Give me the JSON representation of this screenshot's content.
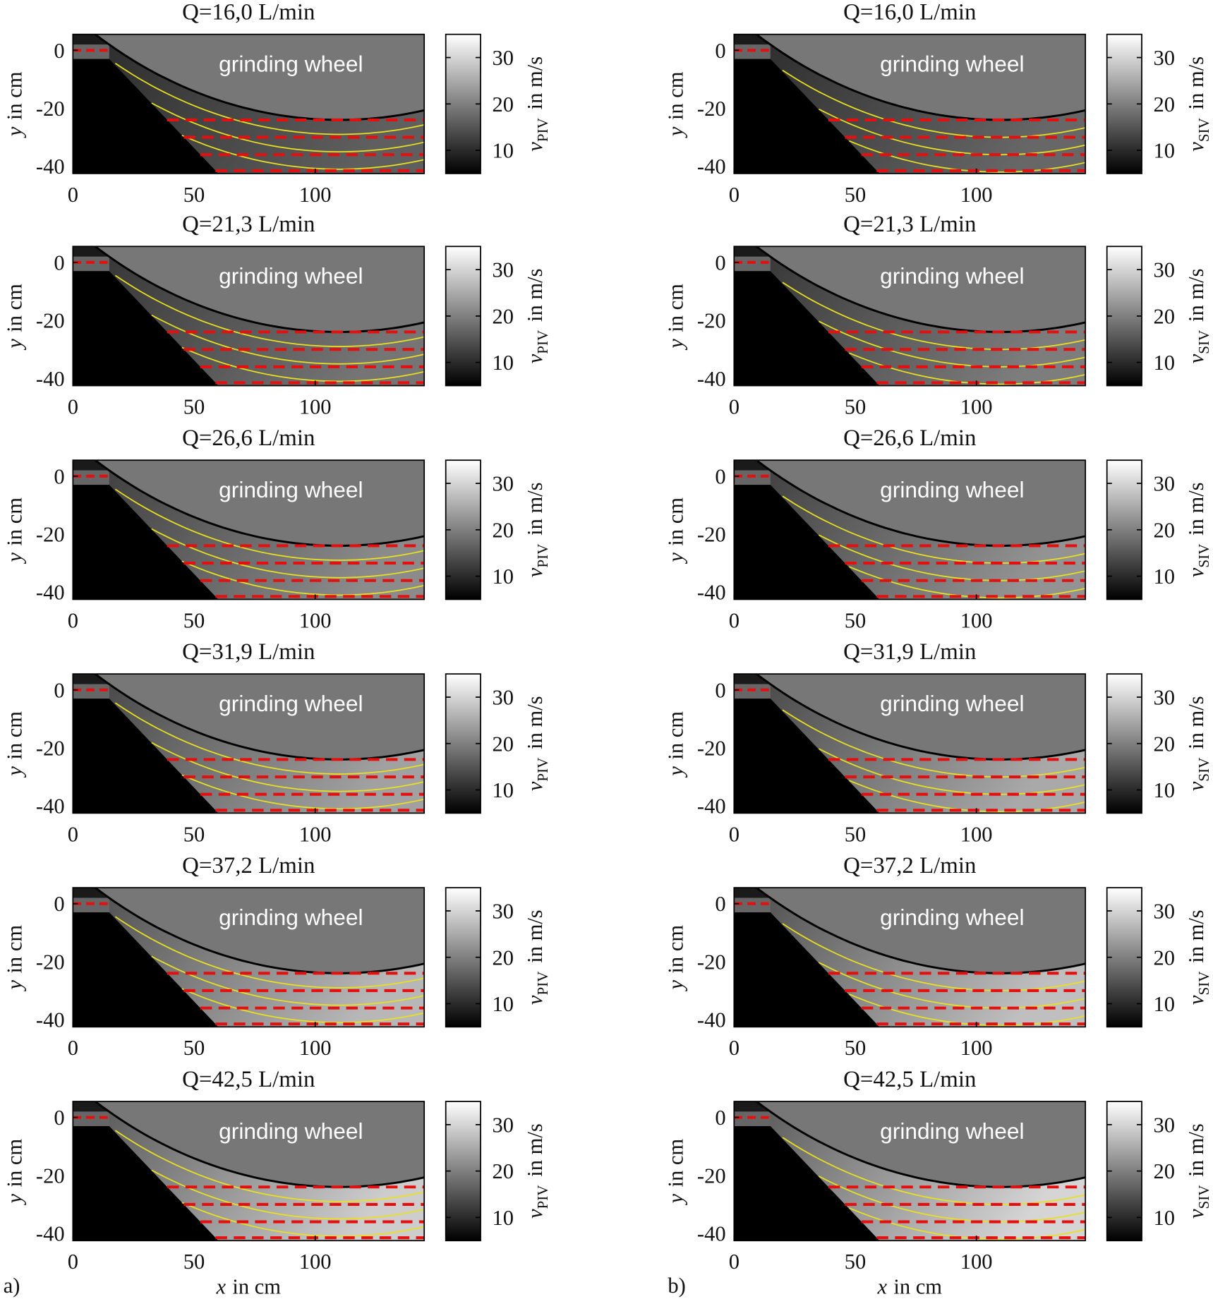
{
  "chart_data": [
    {
      "type": "heatmap",
      "title": "Q=16,0 L/min",
      "annotation": "grinding wheel",
      "ylabel": [
        "y",
        "in cm"
      ],
      "colorbar_label": [
        "v",
        "PIV",
        "in m/s"
      ],
      "xlim": [
        0,
        145
      ],
      "ylim": [
        -42.5,
        5.5
      ],
      "xticks": [
        0,
        50,
        100
      ],
      "yticks": [
        -40,
        -20,
        0
      ],
      "clim": [
        5,
        35
      ],
      "cticks": [
        10,
        20,
        30
      ]
    },
    {
      "type": "heatmap",
      "title": "Q=21,3 L/min",
      "annotation": "grinding wheel",
      "ylabel": [
        "y",
        "in cm"
      ],
      "colorbar_label": [
        "v",
        "PIV",
        "in m/s"
      ],
      "xlim": [
        0,
        145
      ],
      "ylim": [
        -42.5,
        5.5
      ],
      "xticks": [
        0,
        50,
        100
      ],
      "yticks": [
        -40,
        -20,
        0
      ],
      "clim": [
        5,
        35
      ],
      "cticks": [
        10,
        20,
        30
      ]
    },
    {
      "type": "heatmap",
      "title": "Q=26,6 L/min",
      "annotation": "grinding wheel",
      "ylabel": [
        "y",
        "in cm"
      ],
      "colorbar_label": [
        "v",
        "PIV",
        "in m/s"
      ],
      "xlim": [
        0,
        145
      ],
      "ylim": [
        -42.5,
        5.5
      ],
      "xticks": [
        0,
        50,
        100
      ],
      "yticks": [
        -40,
        -20,
        0
      ],
      "clim": [
        5,
        35
      ],
      "cticks": [
        10,
        20,
        30
      ]
    },
    {
      "type": "heatmap",
      "title": "Q=31,9 L/min",
      "annotation": "grinding wheel",
      "ylabel": [
        "y",
        "in cm"
      ],
      "colorbar_label": [
        "v",
        "PIV",
        "in m/s"
      ],
      "xlim": [
        0,
        145
      ],
      "ylim": [
        -42.5,
        5.5
      ],
      "xticks": [
        0,
        50,
        100
      ],
      "yticks": [
        -40,
        -20,
        0
      ],
      "clim": [
        5,
        35
      ],
      "cticks": [
        10,
        20,
        30
      ]
    },
    {
      "type": "heatmap",
      "title": "Q=37,2 L/min",
      "annotation": "grinding wheel",
      "ylabel": [
        "y",
        "in cm"
      ],
      "colorbar_label": [
        "v",
        "PIV",
        "in m/s"
      ],
      "xlim": [
        0,
        145
      ],
      "ylim": [
        -42.5,
        5.5
      ],
      "xticks": [
        0,
        50,
        100
      ],
      "yticks": [
        -40,
        -20,
        0
      ],
      "clim": [
        5,
        35
      ],
      "cticks": [
        10,
        20,
        30
      ]
    },
    {
      "type": "heatmap",
      "title": "Q=42,5 L/min",
      "annotation": "grinding wheel",
      "ylabel": [
        "y",
        "in cm"
      ],
      "xlabel": [
        "x",
        "in cm"
      ],
      "colorbar_label": [
        "v",
        "PIV",
        "in m/s"
      ],
      "xlim": [
        0,
        145
      ],
      "ylim": [
        -42.5,
        5.5
      ],
      "xticks": [
        0,
        50,
        100
      ],
      "yticks": [
        -40,
        -20,
        0
      ],
      "clim": [
        5,
        35
      ],
      "cticks": [
        10,
        20,
        30
      ]
    },
    {
      "type": "heatmap",
      "title": "Q=16,0 L/min",
      "annotation": "grinding wheel",
      "ylabel": [
        "y",
        "in cm"
      ],
      "colorbar_label": [
        "v",
        "SIV",
        "in m/s"
      ],
      "xlim": [
        0,
        145
      ],
      "ylim": [
        -42.5,
        5.5
      ],
      "xticks": [
        0,
        50,
        100
      ],
      "yticks": [
        -40,
        -20,
        0
      ],
      "clim": [
        5,
        35
      ],
      "cticks": [
        10,
        20,
        30
      ]
    },
    {
      "type": "heatmap",
      "title": "Q=21,3 L/min",
      "annotation": "grinding wheel",
      "ylabel": [
        "y",
        "in cm"
      ],
      "colorbar_label": [
        "v",
        "SIV",
        "in m/s"
      ],
      "xlim": [
        0,
        145
      ],
      "ylim": [
        -42.5,
        5.5
      ],
      "xticks": [
        0,
        50,
        100
      ],
      "yticks": [
        -40,
        -20,
        0
      ],
      "clim": [
        5,
        35
      ],
      "cticks": [
        10,
        20,
        30
      ]
    },
    {
      "type": "heatmap",
      "title": "Q=26,6 L/min",
      "annotation": "grinding wheel",
      "ylabel": [
        "y",
        "in cm"
      ],
      "colorbar_label": [
        "v",
        "SIV",
        "in m/s"
      ],
      "xlim": [
        0,
        145
      ],
      "ylim": [
        -42.5,
        5.5
      ],
      "xticks": [
        0,
        50,
        100
      ],
      "yticks": [
        -40,
        -20,
        0
      ],
      "clim": [
        5,
        35
      ],
      "cticks": [
        10,
        20,
        30
      ]
    },
    {
      "type": "heatmap",
      "title": "Q=31,9 L/min",
      "annotation": "grinding wheel",
      "ylabel": [
        "y",
        "in cm"
      ],
      "colorbar_label": [
        "v",
        "SIV",
        "in m/s"
      ],
      "xlim": [
        0,
        145
      ],
      "ylim": [
        -42.5,
        5.5
      ],
      "xticks": [
        0,
        50,
        100
      ],
      "yticks": [
        -40,
        -20,
        0
      ],
      "clim": [
        5,
        35
      ],
      "cticks": [
        10,
        20,
        30
      ]
    },
    {
      "type": "heatmap",
      "title": "Q=37,2 L/min",
      "annotation": "grinding wheel",
      "ylabel": [
        "y",
        "in cm"
      ],
      "colorbar_label": [
        "v",
        "SIV",
        "in m/s"
      ],
      "xlim": [
        0,
        145
      ],
      "ylim": [
        -42.5,
        5.5
      ],
      "xticks": [
        0,
        50,
        100
      ],
      "yticks": [
        -40,
        -20,
        0
      ],
      "clim": [
        5,
        35
      ],
      "cticks": [
        10,
        20,
        30
      ]
    },
    {
      "type": "heatmap",
      "title": "Q=42,5 L/min",
      "annotation": "grinding wheel",
      "ylabel": [
        "y",
        "in cm"
      ],
      "xlabel": [
        "x",
        "in cm"
      ],
      "colorbar_label": [
        "v",
        "SIV",
        "in m/s"
      ],
      "xlim": [
        0,
        145
      ],
      "ylim": [
        -42.5,
        5.5
      ],
      "xticks": [
        0,
        50,
        100
      ],
      "yticks": [
        -40,
        -20,
        0
      ],
      "clim": [
        5,
        35
      ],
      "cticks": [
        10,
        20,
        30
      ]
    }
  ],
  "panel_labels": [
    "a)",
    "b)"
  ]
}
